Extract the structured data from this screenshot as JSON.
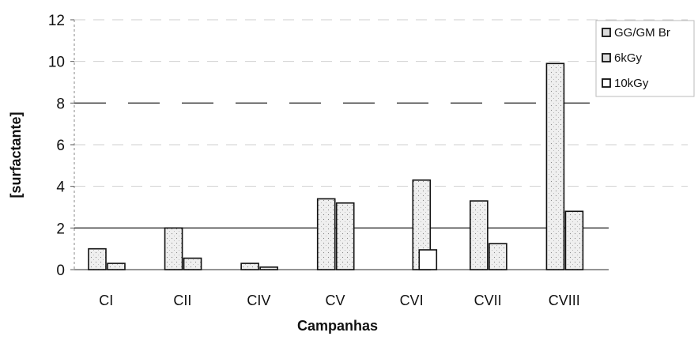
{
  "chart_data": {
    "type": "bar",
    "categories": [
      "CI",
      "CII",
      "CIV",
      "CV",
      "CVI",
      "CVII",
      "CVIII"
    ],
    "series": [
      {
        "name": "GG/GM Br",
        "values": [
          1.0,
          2.0,
          0.3,
          3.4,
          null,
          3.3,
          9.9
        ],
        "color": "#eeeeee",
        "pattern": "dotted"
      },
      {
        "name": "6kGy",
        "values": [
          0.3,
          0.55,
          0.12,
          3.2,
          4.3,
          1.25,
          2.8
        ],
        "color": "#eeeeee",
        "pattern": "dotted"
      },
      {
        "name": "10kGy",
        "values": [
          null,
          null,
          null,
          null,
          0.95,
          null,
          null
        ],
        "color": "#ffffff",
        "pattern": "none"
      }
    ],
    "xlabel": "Campanhas",
    "ylabel": "[surfactante]",
    "ylim": [
      0,
      12
    ],
    "yticks": [
      "0",
      "2",
      "4",
      "6",
      "8",
      "10",
      "12"
    ],
    "reference_lines": [
      2,
      8
    ],
    "grid": true,
    "legend_position": "top-right"
  }
}
